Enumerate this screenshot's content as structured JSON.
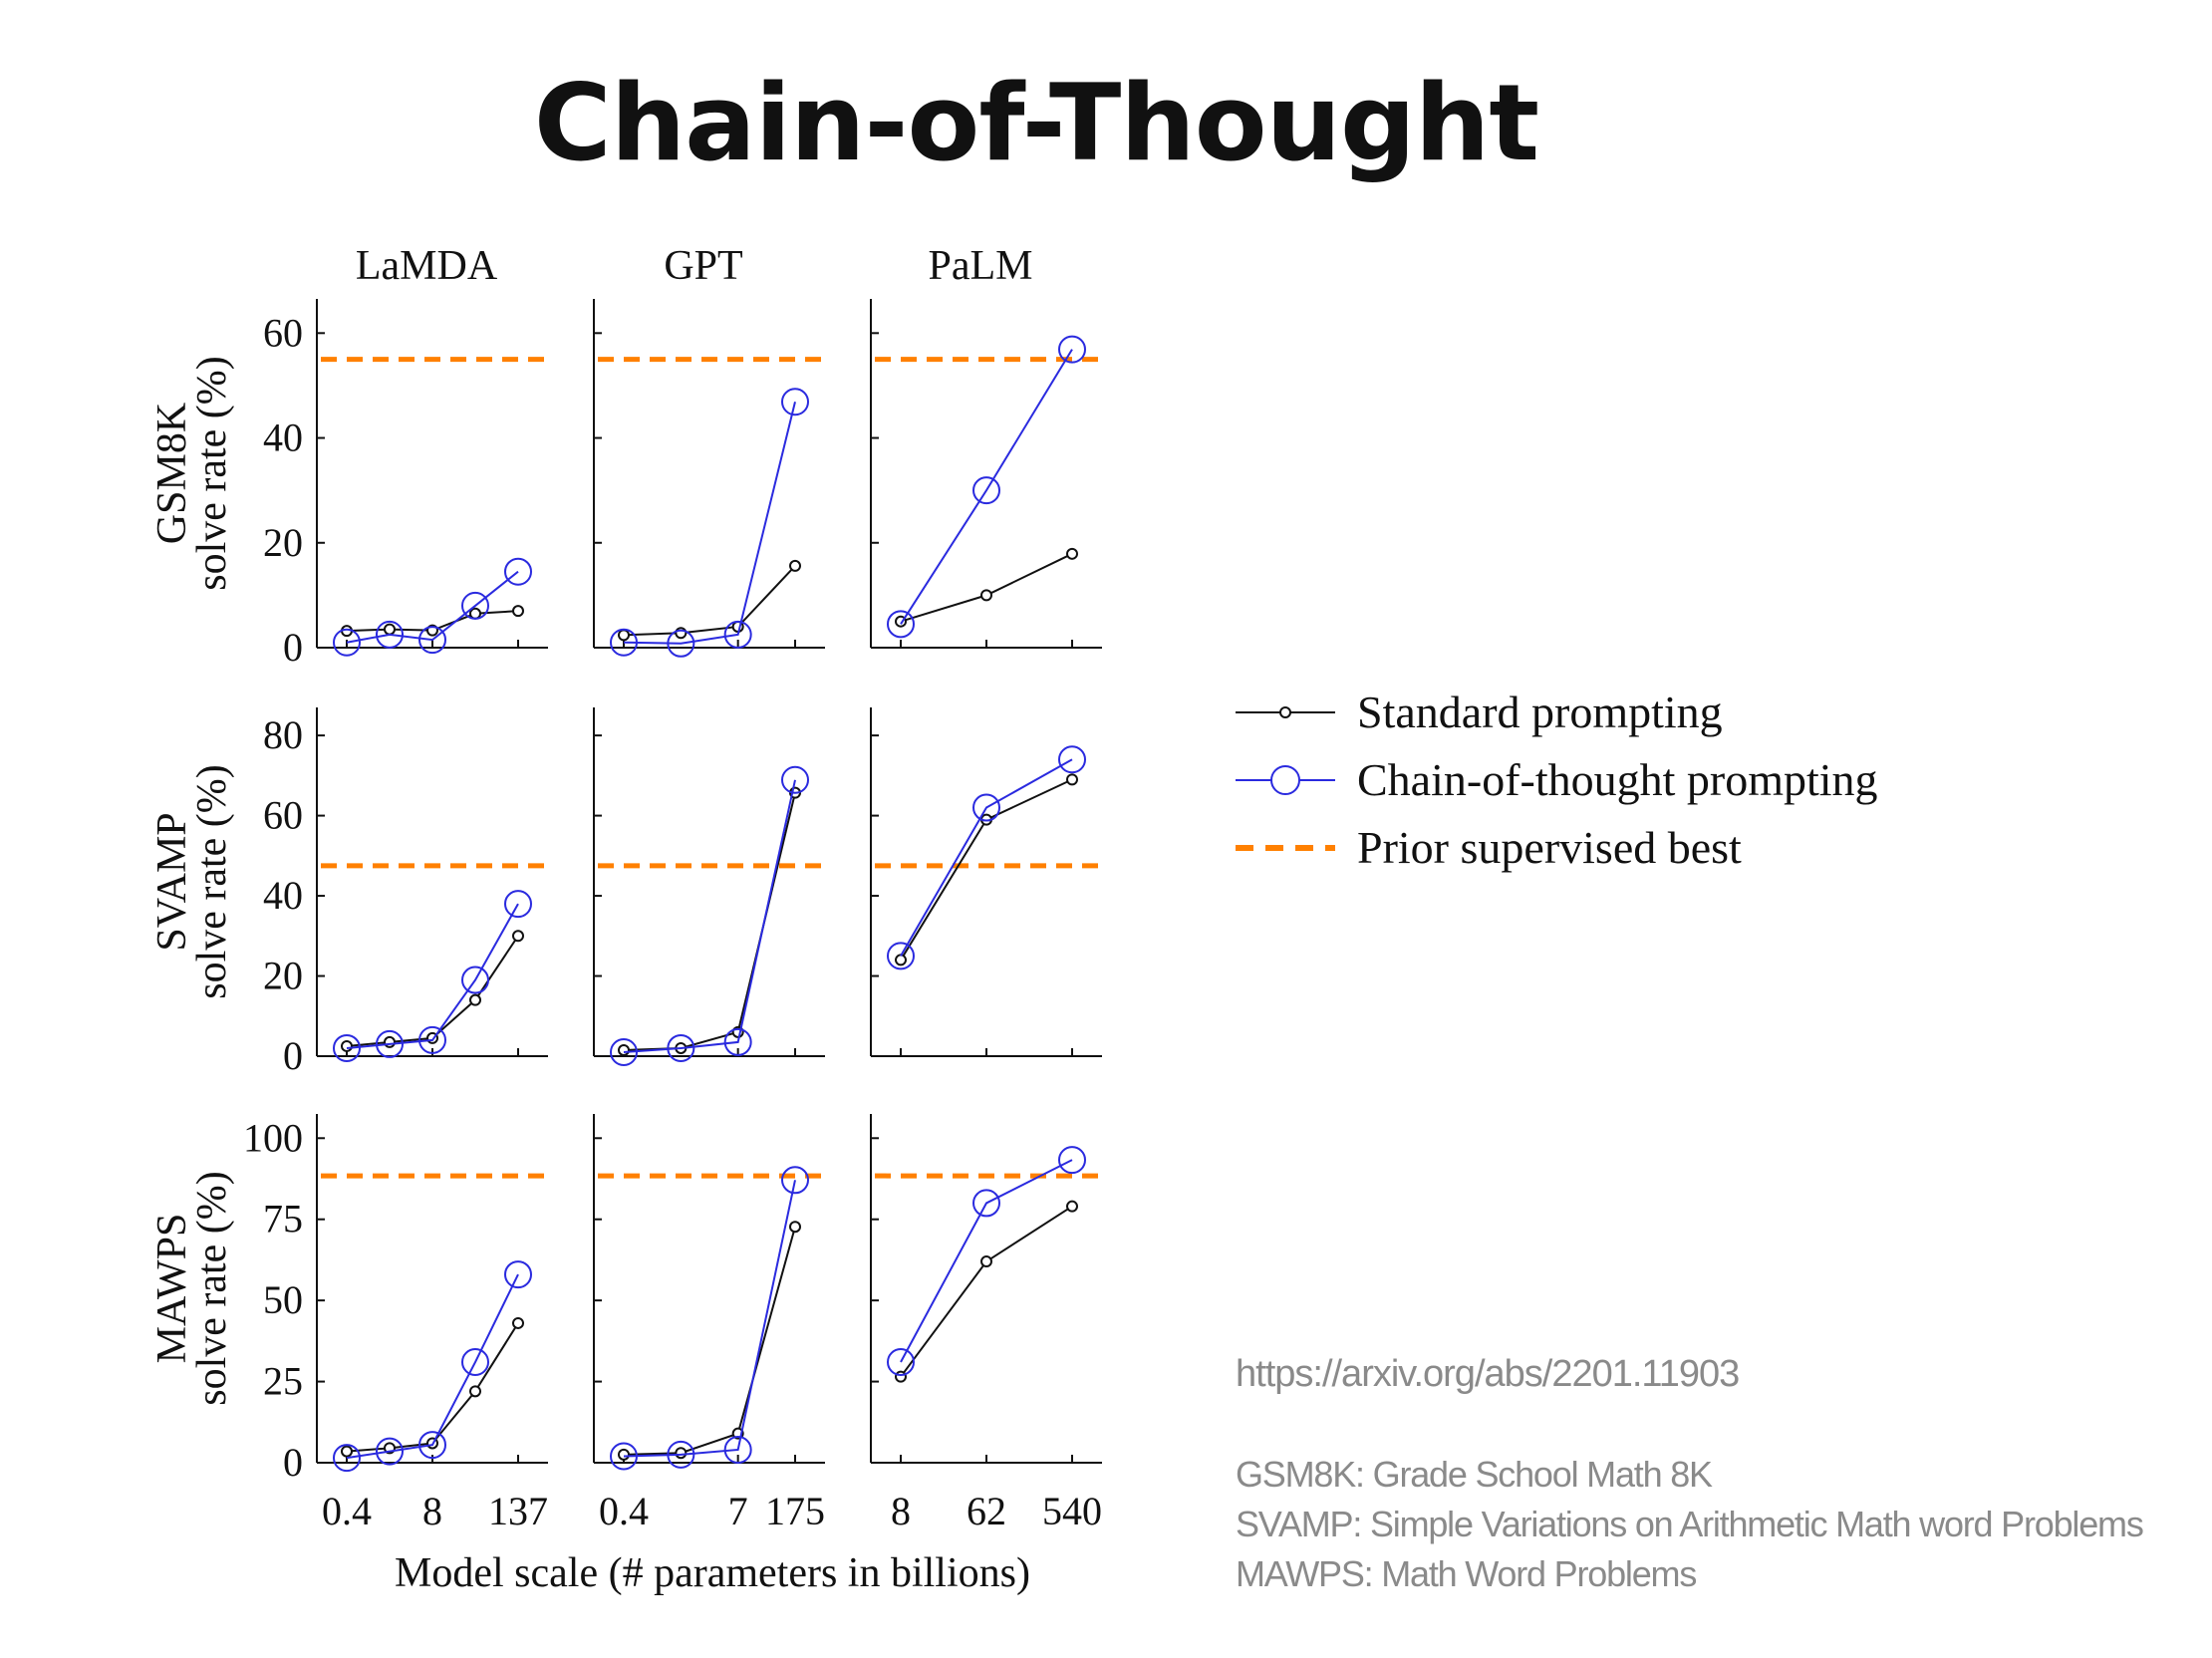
{
  "slide": {
    "title": "Chain-of-Thought",
    "link": "https://arxiv.org/abs/2201.11903",
    "notes": [
      "GSM8K: Grade School Math 8K",
      "SVAMP: Simple Variations on Arithmetic Math word Problems",
      "MAWPS: Math Word Problems"
    ]
  },
  "chart_data": {
    "type": "line",
    "xlabel": "Model scale (# parameters in billions)",
    "columns": [
      "LaMDA",
      "GPT",
      "PaLM"
    ],
    "column_xticks": [
      [
        "0.4",
        "8",
        "137"
      ],
      [
        "0.4",
        "7",
        "175"
      ],
      [
        "8",
        "62",
        "540"
      ]
    ],
    "column_xticks_at": [
      [
        0,
        2,
        4
      ],
      [
        0,
        2,
        3
      ],
      [
        0,
        1,
        2
      ]
    ],
    "column_npoints": [
      5,
      4,
      3
    ],
    "legend": {
      "placement": "right",
      "entries": [
        "Standard prompting",
        "Chain-of-thought prompting",
        "Prior supervised best"
      ]
    },
    "colors": {
      "standard": "#111111",
      "cot": "#2a2adf",
      "prior": "#ff8000"
    },
    "rows": [
      {
        "dataset": "GSM8K",
        "ylabel": "solve rate (%)",
        "yticks": [
          "0",
          "20",
          "40",
          "60"
        ],
        "ylim": [
          0,
          65
        ],
        "prior_best": 55,
        "panels": [
          {
            "model": "LaMDA",
            "standard": [
              3.2,
              3.5,
              3.3,
              6.5,
              7.0
            ],
            "cot": [
              1.0,
              2.5,
              1.5,
              8.0,
              14.5
            ]
          },
          {
            "model": "GPT",
            "standard": [
              2.4,
              2.8,
              4.0,
              15.6
            ],
            "cot": [
              1.0,
              0.8,
              2.5,
              46.9
            ]
          },
          {
            "model": "PaLM",
            "standard": [
              5.0,
              10.0,
              17.9
            ],
            "cot": [
              4.5,
              30.0,
              56.9
            ]
          }
        ]
      },
      {
        "dataset": "SVAMP",
        "ylabel": "solve rate (%)",
        "yticks": [
          "0",
          "20",
          "40",
          "60",
          "80"
        ],
        "ylim": [
          0,
          85
        ],
        "prior_best": 47.5,
        "panels": [
          {
            "model": "LaMDA",
            "standard": [
              2.5,
              3.5,
              4.5,
              14.0,
              30.0
            ],
            "cot": [
              2.0,
              3.0,
              4.0,
              19.0,
              38.0
            ]
          },
          {
            "model": "GPT",
            "standard": [
              1.5,
              2.0,
              6.0,
              65.7
            ],
            "cot": [
              1.0,
              2.0,
              3.5,
              68.9
            ]
          },
          {
            "model": "PaLM",
            "standard": [
              24.0,
              59.0,
              69.0
            ],
            "cot": [
              25.0,
              62.0,
              74.0
            ]
          }
        ]
      },
      {
        "dataset": "MAWPS",
        "ylabel": "solve rate (%)",
        "yticks": [
          "0",
          "25",
          "50",
          "75",
          "100"
        ],
        "ylim": [
          0,
          105
        ],
        "prior_best": 88.4,
        "panels": [
          {
            "model": "LaMDA",
            "standard": [
              3.5,
              4.5,
              6.0,
              22.0,
              43.0
            ],
            "cot": [
              1.5,
              3.5,
              5.5,
              31.0,
              58.0
            ]
          },
          {
            "model": "GPT",
            "standard": [
              2.5,
              3.0,
              9.0,
              72.7
            ],
            "cot": [
              2.0,
              2.5,
              4.0,
              87.1
            ]
          },
          {
            "model": "PaLM",
            "standard": [
              26.5,
              62.0,
              79.0
            ],
            "cot": [
              31.0,
              80.0,
              93.3
            ]
          }
        ]
      }
    ]
  }
}
